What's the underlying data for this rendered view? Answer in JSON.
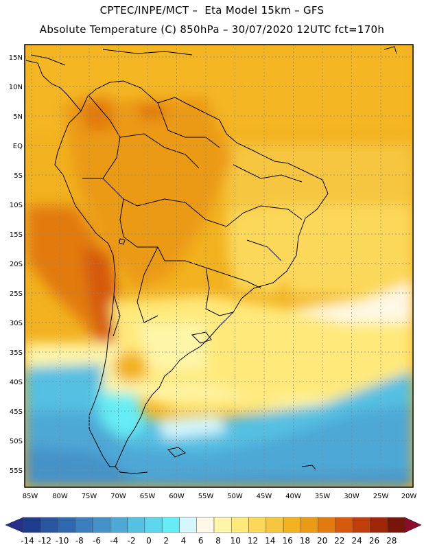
{
  "header": {
    "line1": "CPTEC/INPE/MCT –  Eta Model 15km – GFS",
    "line2": "Absolute Temperature (C) 850hPa – 30/07/2020 12UTC fct=170h"
  },
  "map": {
    "lat_labels": [
      "15N",
      "10N",
      "5N",
      "EQ",
      "5S",
      "10S",
      "15S",
      "20S",
      "25S",
      "30S",
      "35S",
      "40S",
      "45S",
      "50S",
      "55S"
    ],
    "lon_labels": [
      "85W",
      "80W",
      "75W",
      "70W",
      "65W",
      "60W",
      "55W",
      "50W",
      "45W",
      "40W",
      "35W",
      "30W",
      "25W",
      "20W"
    ],
    "region": "South America"
  },
  "colorbar": {
    "labels": [
      "-14",
      "-12",
      "-10",
      "-8",
      "-6",
      "-4",
      "-2",
      "0",
      "2",
      "4",
      "6",
      "8",
      "10",
      "12",
      "14",
      "16",
      "18",
      "20",
      "22",
      "24",
      "26",
      "28"
    ],
    "colors": [
      "#1e3c8c",
      "#2a55a0",
      "#3068b0",
      "#3a80be",
      "#4592c8",
      "#4ea8d6",
      "#55c0e2",
      "#5cd6ec",
      "#66ecf4",
      "#d4f6fc",
      "#fff8e6",
      "#fff5a8",
      "#ffe97a",
      "#fcd85a",
      "#f6c640",
      "#f2b11e",
      "#eb9a16",
      "#e27a10",
      "#d65a0c",
      "#c03e0a",
      "#a02608",
      "#781408"
    ],
    "under_color": "#27308a",
    "over_color": "#8c0a2a"
  }
}
